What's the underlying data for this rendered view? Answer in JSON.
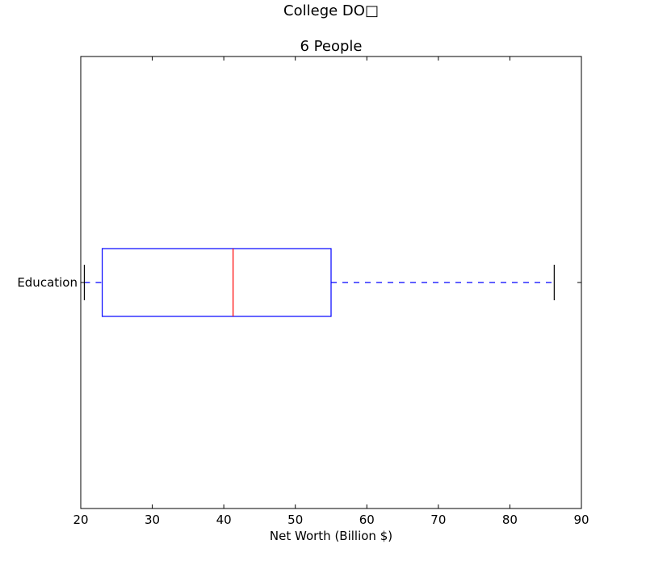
{
  "chart_data": {
    "type": "boxplot",
    "orientation": "horizontal",
    "suptitle": "College DO□",
    "title": "6 People",
    "xlabel": "Net Worth (Billion $)",
    "ylabel": "",
    "xlim": [
      20,
      90
    ],
    "xticks": [
      "20",
      "30",
      "40",
      "50",
      "60",
      "70",
      "80",
      "90"
    ],
    "grid": false,
    "categories": [
      "Education"
    ],
    "boxes": [
      {
        "category": "Education",
        "whisker_low": 20.5,
        "q1": 23.0,
        "median": 41.3,
        "q3": 55.0,
        "whisker_high": 86.2
      }
    ],
    "colors": {
      "box": "#0000ff",
      "median": "#ff0000",
      "whisker": "#0000ff",
      "cap": "#000000"
    }
  }
}
